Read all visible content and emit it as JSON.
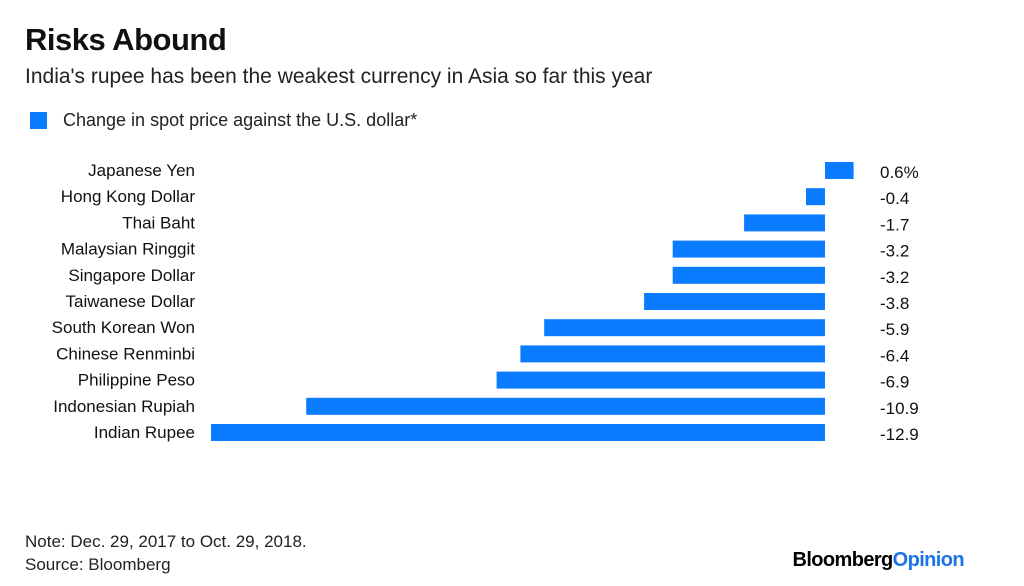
{
  "header": {
    "title": "Risks Abound",
    "subtitle": "India's rupee has been the weakest currency in Asia so far this year"
  },
  "legend": {
    "label": "Change in spot price against the U.S. dollar*",
    "color": "#0a7cff"
  },
  "footer": {
    "note": "Note: Dec. 29, 2017 to Oct. 29, 2018.",
    "source": "Source: Bloomberg",
    "brand_part1": "Bloomberg",
    "brand_part2": "Opinion"
  },
  "chart_data": {
    "type": "bar",
    "orientation": "horizontal",
    "title": "Risks Abound",
    "subtitle": "India's rupee has been the weakest currency in Asia so far this year",
    "categories": [
      "Japanese Yen",
      "Hong Kong Dollar",
      "Thai Baht",
      "Malaysian Ringgit",
      "Singapore Dollar",
      "Taiwanese Dollar",
      "South Korean Won",
      "Chinese Renminbi",
      "Philippine Peso",
      "Indonesian Rupiah",
      "Indian Rupee"
    ],
    "series": [
      {
        "name": "Change in spot price against the U.S. dollar*",
        "values": [
          0.6,
          -0.4,
          -1.7,
          -3.2,
          -3.2,
          -3.8,
          -5.9,
          -6.4,
          -6.9,
          -10.9,
          -12.9
        ]
      }
    ],
    "value_labels": [
      "0.6%",
      "-0.4",
      "-1.7",
      "-3.2",
      "-3.2",
      "-3.8",
      "-5.9",
      "-6.4",
      "-6.9",
      "-10.9",
      "-12.9"
    ],
    "xlim": [
      -12.9,
      0.6
    ],
    "grid": false,
    "legend_position": "top-left",
    "bar_color": "#0a7cff"
  }
}
